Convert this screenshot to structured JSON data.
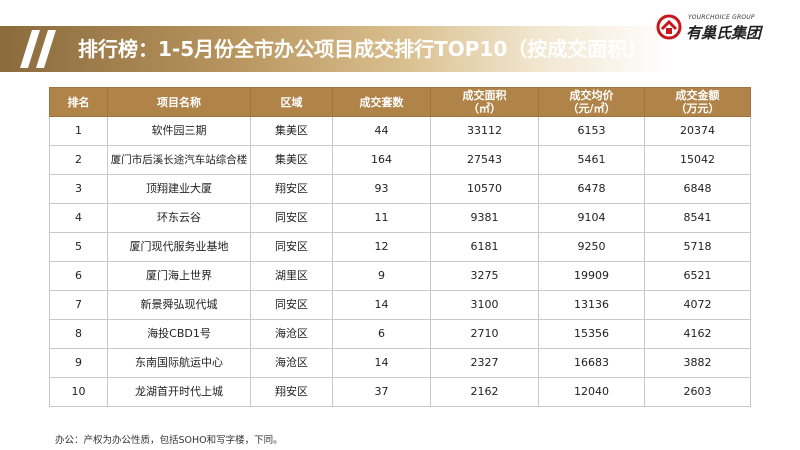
{
  "title": "排行榜：1-5月份全市办公项目成交排行TOP10（按成交面积）",
  "logo": {
    "subtitle": "YOURCHOICE GROUP",
    "name": "有巢氏集团"
  },
  "table": {
    "headers": [
      "排名",
      "项目名称",
      "区域",
      "成交套数",
      "成交面积\n（㎡）",
      "成交均价\n（元/㎡）",
      "成交金额\n（万元）"
    ],
    "rows": [
      [
        "1",
        "软件园三期",
        "集美区",
        "44",
        "33112",
        "6153",
        "20374"
      ],
      [
        "2",
        "厦门市后溪长途汽车站综合楼",
        "集美区",
        "164",
        "27543",
        "5461",
        "15042"
      ],
      [
        "3",
        "顶翔建业大厦",
        "翔安区",
        "93",
        "10570",
        "6478",
        "6848"
      ],
      [
        "4",
        "环东云谷",
        "同安区",
        "11",
        "9381",
        "9104",
        "8541"
      ],
      [
        "5",
        "厦门现代服务业基地",
        "同安区",
        "12",
        "6181",
        "9250",
        "5718"
      ],
      [
        "6",
        "厦门海上世界",
        "湖里区",
        "9",
        "3275",
        "19909",
        "6521"
      ],
      [
        "7",
        "新景舜弘现代城",
        "同安区",
        "14",
        "3100",
        "13136",
        "4072"
      ],
      [
        "8",
        "海投CBD1号",
        "海沧区",
        "6",
        "2710",
        "15356",
        "4162"
      ],
      [
        "9",
        "东南国际航运中心",
        "海沧区",
        "14",
        "2327",
        "16683",
        "3882"
      ],
      [
        "10",
        "龙湖首开时代上城",
        "翔安区",
        "37",
        "2162",
        "12040",
        "2603"
      ]
    ]
  },
  "footnote": "办公：产权为办公性质，包括SOHO和写字楼，下同。",
  "colors": {
    "header_fill": "#b08448",
    "banner_dark": "#8a6b3c",
    "logo_red": "#c8161d"
  }
}
